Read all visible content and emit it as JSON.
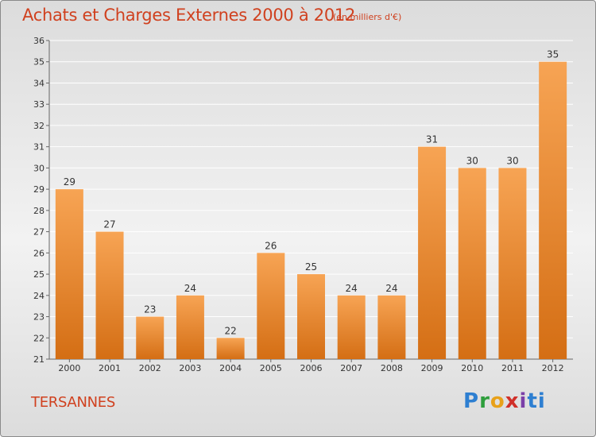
{
  "header": {
    "title": "Achats et Charges Externes 2000 à 2012",
    "unit": "(en milliers d'€)"
  },
  "footer": {
    "commune": "TERSANNES",
    "brand_letters": [
      "P",
      "r",
      "o",
      "x",
      "i",
      "ti"
    ]
  },
  "colors": {
    "bar_top": "#f7a454",
    "bar_bottom": "#d46e14",
    "title": "#d0411f",
    "grid": "#ffffff"
  },
  "chart_data": {
    "type": "bar",
    "categories": [
      "2000",
      "2001",
      "2002",
      "2003",
      "2004",
      "2005",
      "2006",
      "2007",
      "2008",
      "2009",
      "2010",
      "2011",
      "2012"
    ],
    "values": [
      29,
      27,
      23,
      24,
      22,
      26,
      25,
      24,
      24,
      31,
      30,
      30,
      35
    ],
    "ylim": [
      21,
      36
    ],
    "yticks": [
      21,
      22,
      23,
      24,
      25,
      26,
      27,
      28,
      29,
      30,
      31,
      32,
      33,
      34,
      35,
      36
    ],
    "grid": true,
    "data_labels": true
  }
}
